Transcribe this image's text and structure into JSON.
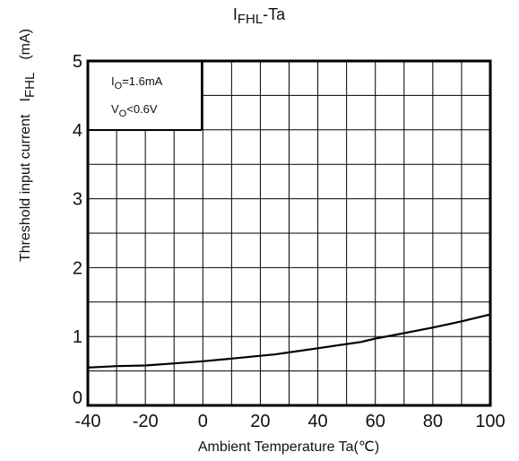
{
  "chart_data": {
    "type": "line",
    "title": {
      "prefix": "I",
      "sub": "FHL",
      "suffix": "-Ta"
    },
    "xlabel": "Ambient Temperature Ta(℃)",
    "ylabel": {
      "main": "Threshold input current",
      "symbol": "I",
      "symbol_sub": "FHL",
      "unit": "(mA)"
    },
    "xlim": [
      -40,
      100
    ],
    "ylim": [
      0,
      5
    ],
    "x_ticks": [
      -40,
      -20,
      0,
      20,
      40,
      60,
      80,
      100
    ],
    "y_ticks": [
      0,
      1,
      2,
      3,
      4,
      5
    ],
    "x_grid_step": 10,
    "y_grid_step": 0.5,
    "grid": true,
    "annotations": [
      {
        "main": "I",
        "sub": "O",
        "rest": "=1.6mA"
      },
      {
        "main": "V",
        "sub": "O",
        "rest": "<0.6V"
      }
    ],
    "series": [
      {
        "x": [
          -40,
          -30,
          -20,
          -10,
          0,
          10,
          20,
          25,
          30,
          40,
          50,
          55,
          60,
          70,
          80,
          90,
          100
        ],
        "y": [
          0.55,
          0.57,
          0.58,
          0.61,
          0.64,
          0.68,
          0.72,
          0.74,
          0.77,
          0.83,
          0.89,
          0.92,
          0.97,
          1.05,
          1.13,
          1.22,
          1.32
        ]
      }
    ],
    "colors": {
      "line": "#000000",
      "grid": "#000000"
    }
  }
}
